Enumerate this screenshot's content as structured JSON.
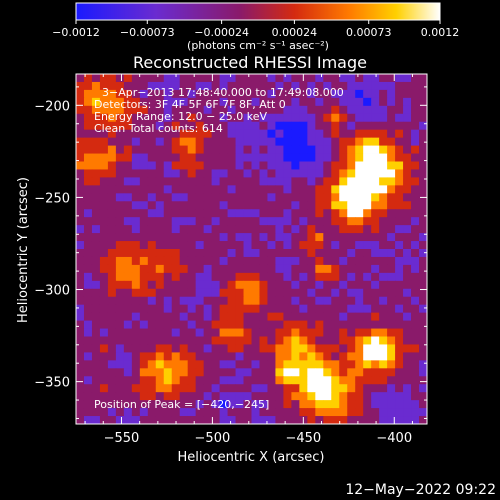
{
  "chart_data": {
    "type": "heatmap",
    "title": "Reconstructed RHESSI Image",
    "xlabel": "Heliocentric X (arcsec)",
    "ylabel": "Heliocentric Y (arcsec)",
    "xlim": [
      -575,
      -382
    ],
    "ylim": [
      -373,
      -183
    ],
    "x_ticks": [
      -550,
      -500,
      -450,
      -400
    ],
    "y_ticks": [
      -200,
      -250,
      -300,
      -350
    ],
    "x_tick_labels": [
      "−550",
      "−500",
      "−450",
      "−400"
    ],
    "y_tick_labels": [
      "−200",
      "−250",
      "−300",
      "−350"
    ],
    "colorbar": {
      "range": [
        -0.0012,
        0.0012
      ],
      "ticks": [
        -0.0012,
        -0.00073,
        -0.00024,
        0.00024,
        0.00073,
        0.0012
      ],
      "tick_labels": [
        "−0.0012",
        "−0.00073",
        "−0.00024",
        "0.00024",
        "0.00073",
        "0.0012"
      ],
      "unit_label": "(photons cm⁻² s⁻¹ asec⁻²)",
      "colors": [
        "#1a1aff",
        "#6a2bd0",
        "#8a1a6a",
        "#d42a10",
        "#ff7a00",
        "#ffd000",
        "#ffffff"
      ]
    },
    "annotations": [
      "3−Apr−2013 17:48:40.000 to 17:49:08.000",
      "Detectors: 3F 4F 5F 6F 7F 8F, Att 0",
      "Energy Range: 12.0 − 25.0 keV",
      "Clean   Total counts: 614",
      "Position of Peak = [−420,−245]"
    ],
    "peak_position": [
      -420,
      -245
    ],
    "grid": false,
    "legend": "none"
  },
  "footer": {
    "timestamp": "12−May−2022 09:22"
  }
}
